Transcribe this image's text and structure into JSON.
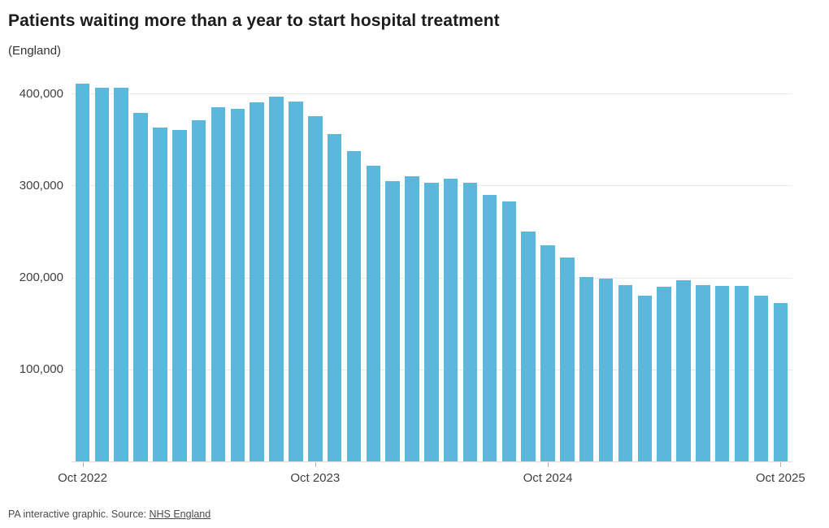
{
  "header": {
    "title": "Patients waiting more than a year to start hospital treatment",
    "subtitle": "(England)"
  },
  "footer": {
    "prefix": "PA interactive graphic. Source: ",
    "source_link": "NHS England"
  },
  "colors": {
    "bar": "#5cb7dc",
    "gridline": "#e9e9e9",
    "axis_text": "#404040",
    "title_text": "#1c1c1c",
    "footer_text": "#4a4a4a"
  },
  "chart_data": {
    "type": "bar",
    "title": "Patients waiting more than a year to start hospital treatment",
    "subtitle": "(England)",
    "categories": [
      "Oct 2022",
      "Nov 2022",
      "Dec 2022",
      "Jan 2023",
      "Feb 2023",
      "Mar 2023",
      "Apr 2023",
      "May 2023",
      "Jun 2023",
      "Jul 2023",
      "Aug 2023",
      "Sep 2023",
      "Oct 2023",
      "Nov 2023",
      "Dec 2023",
      "Jan 2024",
      "Feb 2024",
      "Mar 2024",
      "Apr 2024",
      "May 2024",
      "Jun 2024",
      "Jul 2024",
      "Aug 2024",
      "Sep 2024",
      "Oct 2024",
      "Nov 2024",
      "Dec 2024",
      "Jan 2025",
      "Feb 2025",
      "Mar 2025",
      "Apr 2025",
      "May 2025",
      "Jun 2025",
      "Jul 2025",
      "Aug 2025",
      "Sep 2025",
      "Oct 2025"
    ],
    "values": [
      411000,
      406500,
      406000,
      379000,
      362500,
      360000,
      371000,
      385000,
      383000,
      390000,
      396500,
      391000,
      375500,
      355500,
      337500,
      321500,
      305000,
      309500,
      302500,
      307000,
      302500,
      290000,
      282500,
      249500,
      235000,
      222000,
      200500,
      199000,
      192000,
      180000,
      189500,
      196500,
      191500,
      191000,
      191000,
      180000,
      172000
    ],
    "xlabel": "",
    "ylabel": "",
    "x_tick_labels": [
      "Oct 2022",
      "Oct 2023",
      "Oct 2024",
      "Oct 2025"
    ],
    "x_tick_indices": [
      0,
      12,
      24,
      36
    ],
    "y_ticks": [
      400000,
      300000,
      200000,
      100000
    ],
    "y_tick_labels": [
      "400,000",
      "300,000",
      "200,000",
      "100,000"
    ],
    "ylim": [
      0,
      414000
    ],
    "grid": "horizontal",
    "legend": false,
    "source": "NHS England"
  }
}
